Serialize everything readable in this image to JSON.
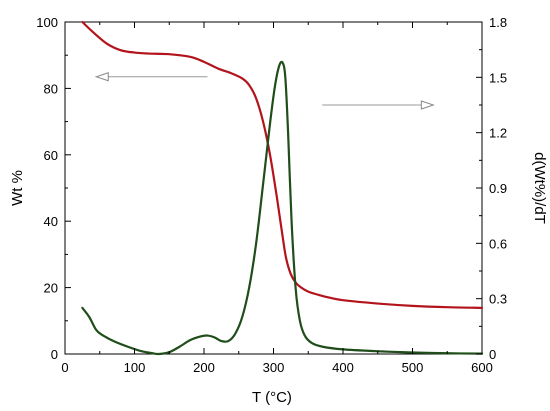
{
  "chart_data": {
    "type": "line",
    "xlabel": "T (°C)",
    "ylabel": "Wt %",
    "y2label": "d(Wt%)/dT",
    "xlim": [
      0,
      600
    ],
    "ylim": [
      0,
      100
    ],
    "y2lim": [
      0,
      1.8
    ],
    "grid": false,
    "x_ticks": [
      "0",
      "100",
      "200",
      "300",
      "400",
      "500",
      "600"
    ],
    "y_ticks": [
      "0",
      "20",
      "40",
      "60",
      "80",
      "100"
    ],
    "y2_ticks": [
      "0",
      "0.3",
      "0.6",
      "0.9",
      "1.2",
      "1.5",
      "1.8"
    ],
    "series": [
      {
        "axis": "left",
        "color": "#b3141c",
        "x": [
          25,
          40,
          60,
          80,
          100,
          120,
          150,
          180,
          200,
          220,
          240,
          255,
          265,
          275,
          285,
          295,
          305,
          312,
          318,
          325,
          332,
          340,
          350,
          365,
          380,
          400,
          450,
          500,
          550,
          600
        ],
        "y": [
          100,
          97,
          93.5,
          91.5,
          90.8,
          90.5,
          90.3,
          89.5,
          88,
          86,
          84.5,
          83,
          81,
          77,
          70,
          60,
          47,
          37,
          29,
          24,
          21.5,
          20,
          18.8,
          17.8,
          17,
          16.2,
          15.2,
          14.5,
          14.1,
          13.9
        ]
      },
      {
        "axis": "right",
        "color": "#1f4e1a",
        "x": [
          25,
          35,
          45,
          55,
          70,
          90,
          110,
          125,
          135,
          150,
          165,
          180,
          195,
          205,
          215,
          225,
          235,
          245,
          255,
          265,
          275,
          285,
          295,
          302,
          308,
          313,
          317,
          321,
          326,
          332,
          338,
          345,
          355,
          370,
          400,
          450,
          500,
          550,
          600
        ],
        "y": [
          0.25,
          0.2,
          0.13,
          0.1,
          0.07,
          0.04,
          0.015,
          0.005,
          0.0,
          0.01,
          0.04,
          0.075,
          0.095,
          0.1,
          0.09,
          0.07,
          0.07,
          0.11,
          0.2,
          0.36,
          0.6,
          0.92,
          1.25,
          1.45,
          1.56,
          1.58,
          1.5,
          1.2,
          0.72,
          0.35,
          0.18,
          0.1,
          0.06,
          0.04,
          0.025,
          0.015,
          0.008,
          0.004,
          0.002
        ]
      }
    ],
    "annotations": [
      {
        "type": "arrow",
        "direction": "left",
        "from": [
          205,
          83.5
        ],
        "to": [
          45,
          83.5
        ]
      },
      {
        "type": "arrow",
        "direction": "right",
        "from": [
          370,
          75
        ],
        "to": [
          530,
          75
        ]
      }
    ]
  }
}
